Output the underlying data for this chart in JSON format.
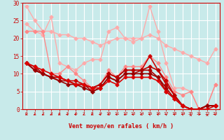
{
  "background_color": "#c8eaea",
  "grid_color": "#ffffff",
  "xlabel": "Vent moyen/en rafales ( km/h )",
  "xlabel_color": "#cc0000",
  "tick_color": "#cc0000",
  "xlim": [
    0,
    23
  ],
  "ylim": [
    0,
    30
  ],
  "yticks": [
    0,
    5,
    10,
    15,
    20,
    25,
    30
  ],
  "xticks": [
    0,
    1,
    2,
    3,
    4,
    5,
    6,
    7,
    8,
    9,
    10,
    11,
    12,
    13,
    14,
    15,
    16,
    17,
    18,
    19,
    20,
    21,
    22,
    23
  ],
  "series": [
    {
      "x": [
        0,
        1,
        2,
        3,
        4,
        5,
        6,
        7,
        8,
        9,
        10,
        11,
        12,
        13,
        14,
        15,
        16,
        17,
        18,
        19,
        20,
        21,
        22,
        23
      ],
      "y": [
        29,
        25,
        22,
        22,
        21,
        21,
        20,
        20,
        19,
        18,
        19,
        20,
        20,
        20,
        20,
        21,
        20,
        18,
        17,
        16,
        15,
        14,
        13,
        17
      ],
      "color": "#ffaaaa",
      "lw": 1.0,
      "marker": "D",
      "ms": 2.5
    },
    {
      "x": [
        0,
        1,
        2,
        3,
        4,
        5,
        6,
        7,
        8,
        9,
        10,
        11,
        12,
        13,
        14,
        15,
        16,
        17,
        18,
        19,
        20,
        21,
        22,
        23
      ],
      "y": [
        24,
        22,
        21,
        26,
        13,
        12,
        11,
        13,
        14,
        14,
        22,
        23,
        20,
        19,
        20,
        29,
        22,
        13,
        6,
        6,
        5,
        0,
        1,
        7
      ],
      "color": "#ffaaaa",
      "lw": 1.0,
      "marker": "D",
      "ms": 2.5
    },
    {
      "x": [
        0,
        1,
        2,
        3,
        4,
        5,
        6,
        7,
        8,
        9,
        10,
        11,
        12,
        13,
        14,
        15,
        16,
        17,
        18,
        19,
        20,
        21,
        22,
        23
      ],
      "y": [
        22,
        22,
        22,
        10,
        10,
        12,
        10,
        8,
        6,
        7,
        11,
        9,
        12,
        12,
        12,
        15,
        13,
        9,
        5,
        4,
        5,
        0,
        1,
        7
      ],
      "color": "#ff8888",
      "lw": 1.0,
      "marker": "D",
      "ms": 2.5
    },
    {
      "x": [
        0,
        1,
        2,
        3,
        4,
        5,
        6,
        7,
        8,
        9,
        10,
        11,
        12,
        13,
        14,
        15,
        16,
        17,
        18,
        19,
        20,
        21,
        22,
        23
      ],
      "y": [
        13,
        11,
        10,
        9,
        9,
        8,
        8,
        7,
        6,
        7,
        10,
        9,
        11,
        11,
        11,
        15,
        11,
        8,
        4,
        1,
        0,
        0,
        1,
        1
      ],
      "color": "#cc0000",
      "lw": 1.2,
      "marker": "D",
      "ms": 2.5
    },
    {
      "x": [
        0,
        1,
        2,
        3,
        4,
        5,
        6,
        7,
        8,
        9,
        10,
        11,
        12,
        13,
        14,
        15,
        16,
        17,
        18,
        19,
        20,
        21,
        22,
        23
      ],
      "y": [
        13,
        11,
        10,
        9,
        9,
        8,
        7,
        7,
        6,
        7,
        10,
        9,
        11,
        11,
        11,
        12,
        11,
        7,
        4,
        1,
        0,
        0,
        1,
        1
      ],
      "color": "#bb0000",
      "lw": 1.2,
      "marker": "D",
      "ms": 2.5
    },
    {
      "x": [
        0,
        1,
        2,
        3,
        4,
        5,
        6,
        7,
        8,
        9,
        10,
        11,
        12,
        13,
        14,
        15,
        16,
        17,
        18,
        19,
        20,
        21,
        22,
        23
      ],
      "y": [
        13,
        12,
        10,
        9,
        8,
        8,
        7,
        7,
        5,
        6,
        9,
        8,
        10,
        10,
        11,
        11,
        9,
        6,
        3,
        1,
        0,
        0,
        1,
        1
      ],
      "color": "#aa0000",
      "lw": 1.2,
      "marker": "D",
      "ms": 2.5
    },
    {
      "x": [
        0,
        1,
        2,
        3,
        4,
        5,
        6,
        7,
        8,
        9,
        10,
        11,
        12,
        13,
        14,
        15,
        16,
        17,
        18,
        19,
        20,
        21,
        22,
        23
      ],
      "y": [
        13,
        11,
        10,
        9,
        8,
        7,
        7,
        6,
        5,
        6,
        9,
        8,
        10,
        10,
        10,
        10,
        9,
        5,
        3,
        1,
        0,
        0,
        1,
        1
      ],
      "color": "#990000",
      "lw": 1.2,
      "marker": "D",
      "ms": 2.5
    },
    {
      "x": [
        0,
        1,
        2,
        3,
        4,
        5,
        6,
        7,
        8,
        9,
        10,
        11,
        12,
        13,
        14,
        15,
        16,
        17,
        18,
        19,
        20,
        21,
        22,
        23
      ],
      "y": [
        13,
        12,
        11,
        10,
        9,
        8,
        7,
        7,
        6,
        6,
        8,
        7,
        9,
        9,
        9,
        9,
        8,
        5,
        3,
        1,
        0,
        0,
        0,
        1
      ],
      "color": "#dd0000",
      "lw": 1.2,
      "marker": "D",
      "ms": 2.5
    }
  ],
  "wind_arrows": [
    225,
    225,
    225,
    225,
    225,
    270,
    270,
    225,
    225,
    270,
    225,
    270,
    225,
    270,
    225,
    315,
    315,
    315,
    315,
    315,
    0,
    90,
    0,
    270
  ]
}
